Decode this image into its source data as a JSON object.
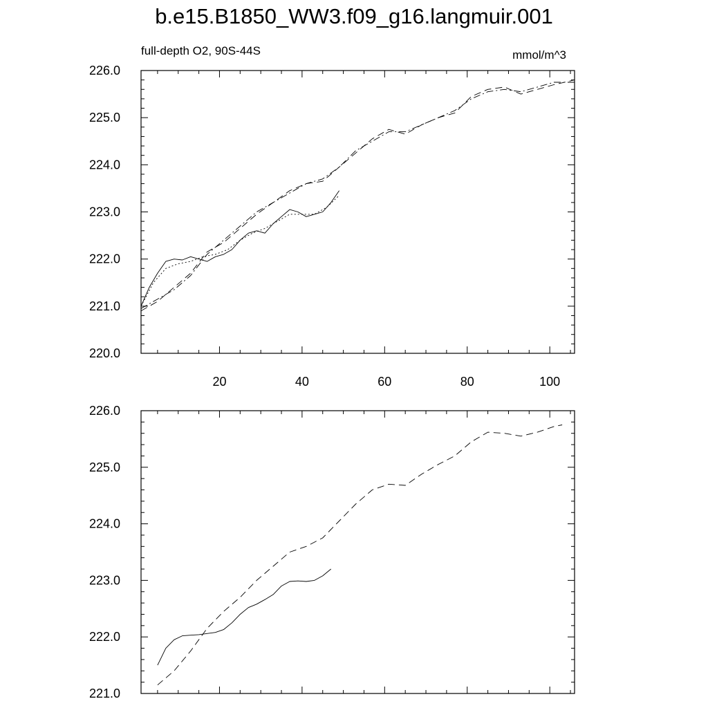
{
  "title": "b.e15.B1850_WW3.f09_g16.langmuir.001",
  "subtitle_left": "full-depth O2, 90S-44S",
  "subtitle_right": "mmol/m^3",
  "chart_data": [
    {
      "type": "line",
      "title": "",
      "xlabel": "",
      "ylabel": "",
      "xlim": [
        1,
        106
      ],
      "ylim": [
        220,
        226
      ],
      "xticks": [
        20,
        40,
        60,
        80,
        100
      ],
      "yticks": [
        220,
        221,
        222,
        223,
        224,
        225,
        226
      ],
      "ytick_labels": [
        "220.0",
        "221.0",
        "222.0",
        "223.0",
        "224.0",
        "225.0",
        "226.0"
      ],
      "grid": false,
      "series": [
        {
          "style": "solid",
          "x": [
            1,
            3,
            5,
            7,
            9,
            11,
            13,
            15,
            17,
            19,
            21,
            23,
            25,
            27,
            29,
            31,
            33,
            35,
            37,
            39,
            41,
            43,
            45,
            47,
            49
          ],
          "values": [
            221.0,
            221.4,
            221.7,
            221.95,
            222.0,
            221.98,
            222.05,
            222.0,
            221.95,
            222.05,
            222.1,
            222.2,
            222.4,
            222.55,
            222.6,
            222.55,
            222.75,
            222.9,
            223.05,
            223.0,
            222.9,
            222.95,
            223.0,
            223.2,
            223.45
          ]
        },
        {
          "style": "dotted",
          "x": [
            1,
            4,
            7,
            10,
            13,
            16,
            19,
            22,
            25,
            28,
            31,
            34,
            37,
            40,
            43,
            46,
            49
          ],
          "values": [
            221.0,
            221.5,
            221.8,
            221.9,
            221.95,
            222.05,
            222.1,
            222.2,
            222.4,
            222.55,
            222.65,
            222.8,
            222.95,
            222.95,
            222.95,
            223.1,
            223.35
          ]
        },
        {
          "style": "dashed",
          "x": [
            1,
            5,
            9,
            13,
            17,
            21,
            25,
            29,
            33,
            37,
            41,
            45,
            49,
            53,
            57,
            61,
            65,
            69,
            73,
            77,
            81,
            85,
            89,
            93,
            97,
            101,
            106
          ],
          "values": [
            220.9,
            221.1,
            221.4,
            221.7,
            222.15,
            222.35,
            222.65,
            222.95,
            223.2,
            223.45,
            223.6,
            223.65,
            223.95,
            224.25,
            224.55,
            224.75,
            224.65,
            224.85,
            225.0,
            225.1,
            225.45,
            225.6,
            225.65,
            225.5,
            225.6,
            225.7,
            225.8
          ]
        },
        {
          "style": "dashdot",
          "x": [
            1,
            5,
            9,
            13,
            17,
            21,
            25,
            29,
            33,
            37,
            41,
            45,
            49,
            53,
            57,
            61,
            65,
            69,
            73,
            77,
            81,
            85,
            89,
            93,
            97,
            101,
            106
          ],
          "values": [
            220.95,
            221.15,
            221.35,
            221.65,
            222.1,
            222.4,
            222.7,
            223.0,
            223.2,
            223.4,
            223.6,
            223.7,
            223.95,
            224.3,
            224.5,
            224.7,
            224.7,
            224.85,
            225.0,
            225.15,
            225.4,
            225.55,
            225.6,
            225.55,
            225.65,
            225.75,
            225.75
          ]
        }
      ]
    },
    {
      "type": "line",
      "title": "",
      "xlabel": "",
      "ylabel": "",
      "xlim": [
        1,
        106
      ],
      "ylim": [
        221,
        226
      ],
      "xticks": [
        20,
        40,
        60,
        80,
        100
      ],
      "yticks": [
        221,
        222,
        223,
        224,
        225,
        226
      ],
      "ytick_labels": [
        "221.0",
        "222.0",
        "223.0",
        "224.0",
        "225.0",
        "226.0"
      ],
      "grid": false,
      "series": [
        {
          "style": "solid",
          "x": [
            5,
            7,
            9,
            11,
            13,
            15,
            17,
            19,
            21,
            23,
            25,
            27,
            29,
            31,
            33,
            35,
            37,
            39,
            41,
            43,
            45,
            47
          ],
          "values": [
            221.5,
            221.8,
            221.95,
            222.02,
            222.03,
            222.04,
            222.06,
            222.08,
            222.13,
            222.25,
            222.4,
            222.52,
            222.58,
            222.66,
            222.75,
            222.9,
            222.98,
            222.99,
            222.98,
            223.0,
            223.08,
            223.2
          ]
        },
        {
          "style": "dashed",
          "x": [
            5,
            9,
            13,
            17,
            21,
            25,
            29,
            33,
            37,
            41,
            45,
            49,
            53,
            57,
            61,
            65,
            69,
            73,
            77,
            81,
            85,
            89,
            93,
            97,
            101,
            103
          ],
          "values": [
            221.15,
            221.4,
            221.75,
            222.15,
            222.45,
            222.7,
            223.0,
            223.25,
            223.5,
            223.6,
            223.75,
            224.05,
            224.35,
            224.6,
            224.7,
            224.68,
            224.88,
            225.05,
            225.2,
            225.45,
            225.62,
            225.6,
            225.55,
            225.62,
            225.72,
            225.75
          ]
        }
      ]
    }
  ]
}
